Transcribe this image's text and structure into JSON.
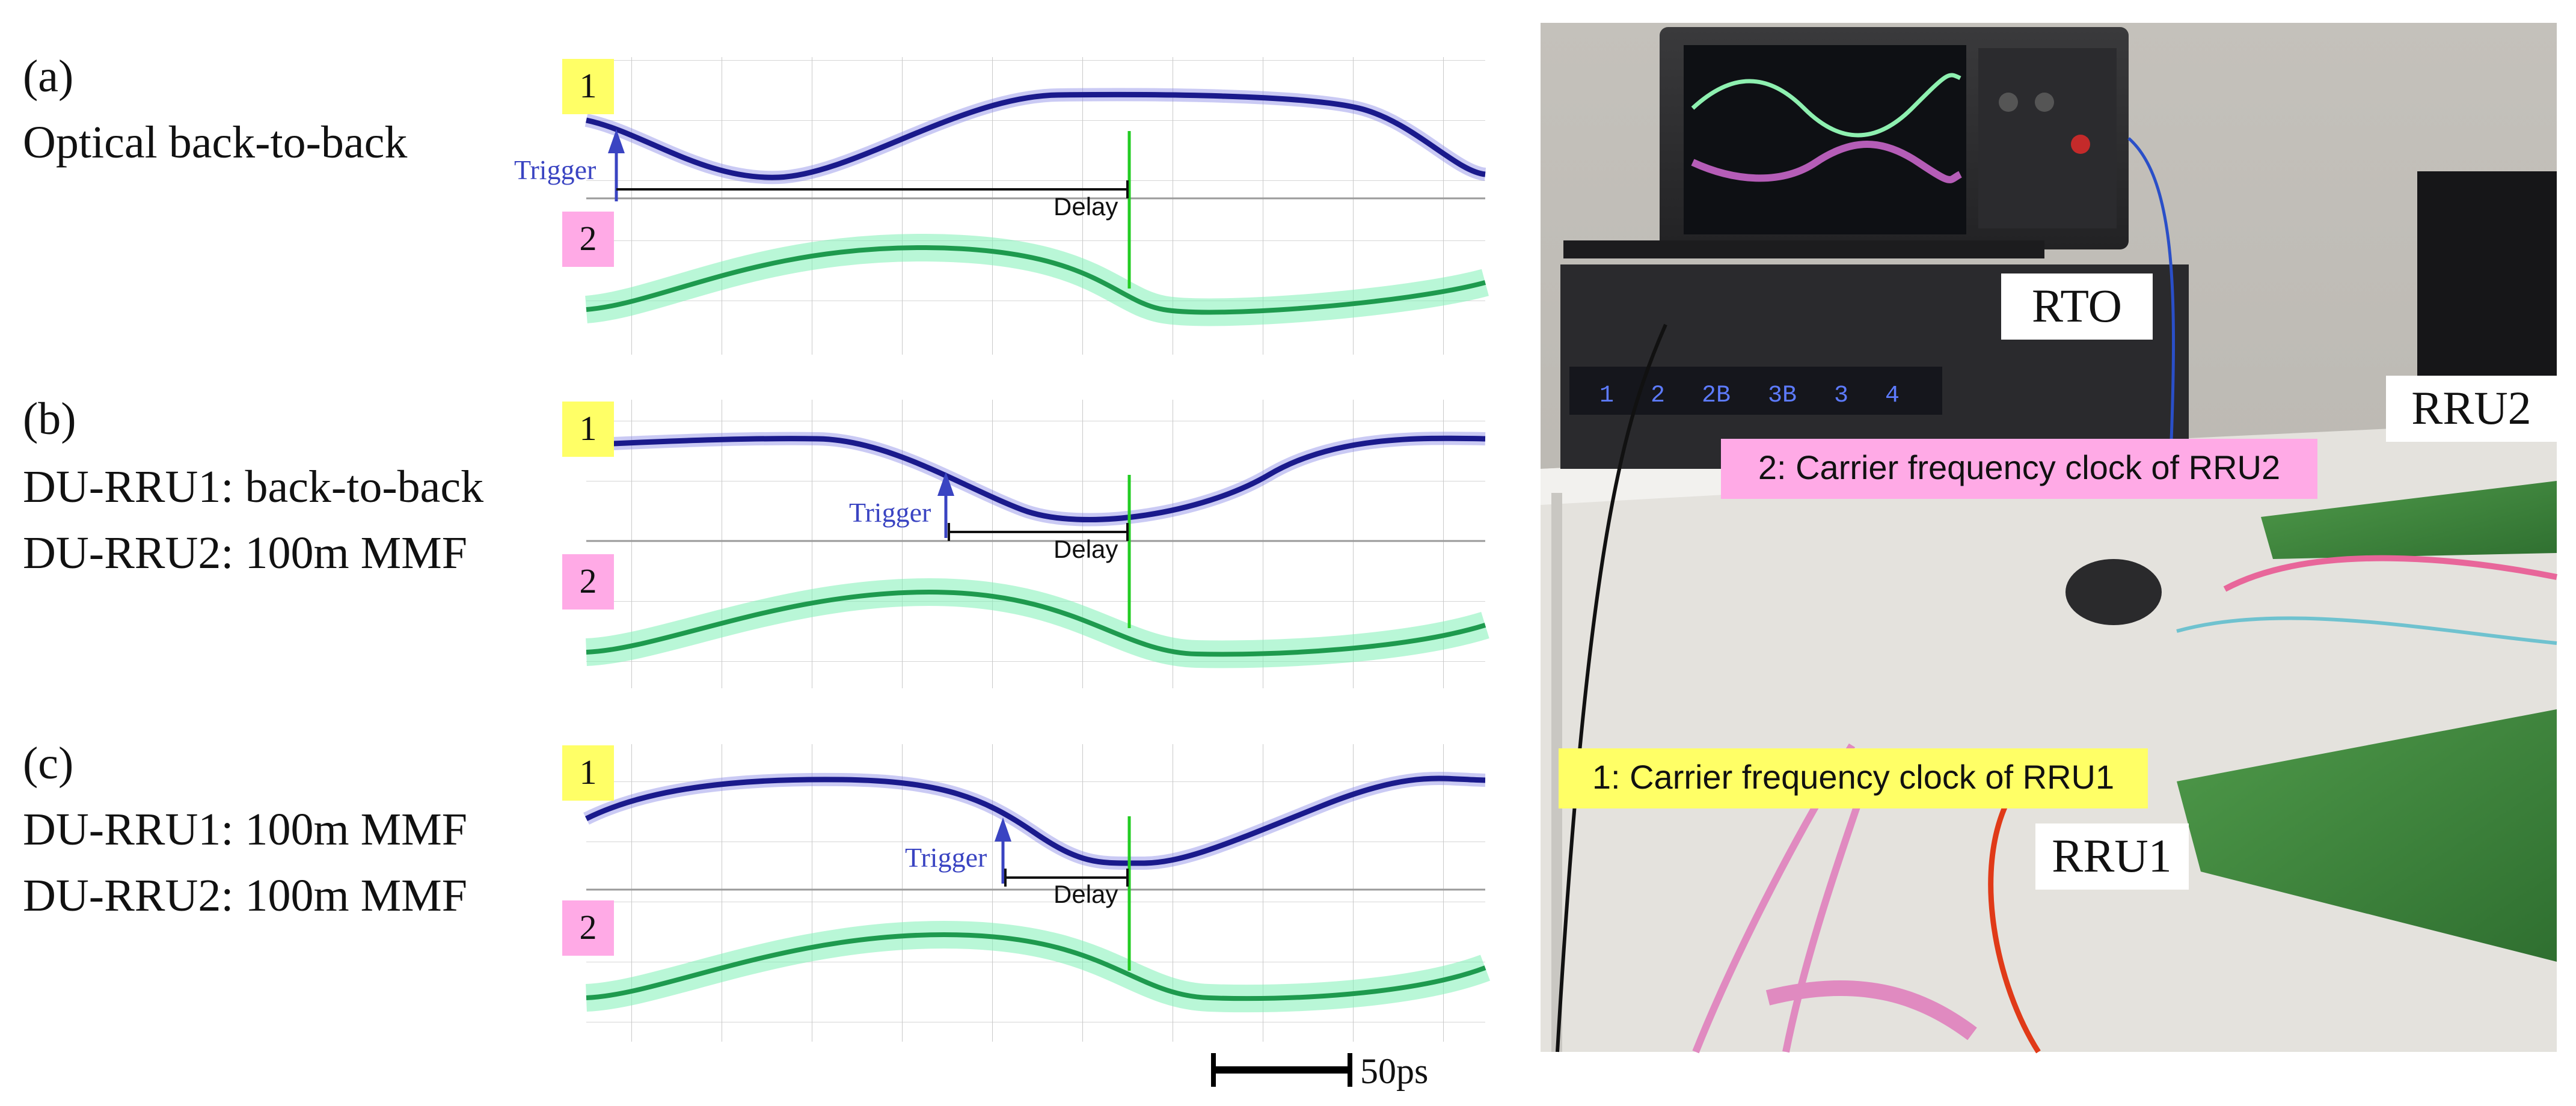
{
  "panels": [
    {
      "letter": "(a)",
      "line1": "Optical back-to-back",
      "line2": "",
      "ch1_label": "1",
      "ch2_label": "2",
      "trigger_label": "Trigger",
      "delay_label": "Delay"
    },
    {
      "letter": "(b)",
      "line1": "DU-RRU1: back-to-back",
      "line2": "DU-RRU2: 100m MMF",
      "ch1_label": "1",
      "ch2_label": "2",
      "trigger_label": "Trigger",
      "delay_label": "Delay"
    },
    {
      "letter": "(c)",
      "line1": "DU-RRU1: 100m MMF",
      "line2": "DU-RRU2: 100m MMF",
      "ch1_label": "1",
      "ch2_label": "2",
      "trigger_label": "Trigger",
      "delay_label": "Delay"
    }
  ],
  "scale_bar": {
    "label": "50ps"
  },
  "photo": {
    "rto_label": "RTO",
    "rru1_label": "RRU1",
    "rru2_label": "RRU2",
    "clock1_label": "1: Carrier frequency clock of RRU1",
    "clock2_label": "2: Carrier frequency clock of RRU2",
    "scope_channels": [
      "1",
      "2",
      "2B",
      "3B",
      "3",
      "4"
    ]
  },
  "colors": {
    "badge1": "#ffff66",
    "badge2": "#ffaae6",
    "ch1_trace": "#1a1a8c",
    "ch2_trace": "#30e890",
    "marker": "#22cc22",
    "trigger": "#3a44c2"
  }
}
